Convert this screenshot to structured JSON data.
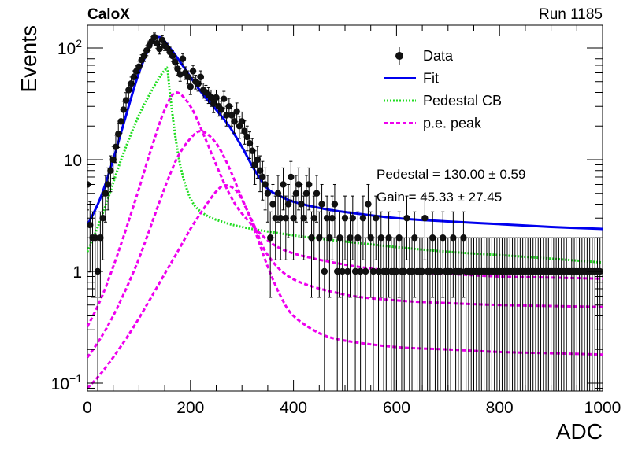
{
  "header": {
    "experiment": "CaloX",
    "run": "Run 1185"
  },
  "chart_data": {
    "type": "scatter",
    "xlabel": "ADC",
    "ylabel": "Events",
    "xlim": [
      0,
      1000
    ],
    "ylim": [
      0.085,
      160
    ],
    "yscale": "log",
    "x_ticks": [
      0,
      200,
      400,
      600,
      800,
      1000
    ],
    "y_ticks": [
      {
        "value": 0.1,
        "base": "10",
        "exp": "−1"
      },
      {
        "value": 1,
        "label": "1"
      },
      {
        "value": 10,
        "label": "10"
      },
      {
        "value": 100,
        "base": "10",
        "exp": "2"
      }
    ],
    "legend": {
      "position": "top-right",
      "entries": [
        {
          "label": "Data",
          "style": "marker"
        },
        {
          "label": "Fit",
          "style": "line",
          "color": "#0000ee"
        },
        {
          "label": "Pedestal CB",
          "style": "dotted",
          "color": "#22dd22"
        },
        {
          "label": "p.e. peak",
          "style": "dashed",
          "color": "#ee00ee"
        }
      ]
    },
    "annotations": [
      {
        "label": "Pedestal",
        "value": "130.00",
        "error": "0.59"
      },
      {
        "label": "Gain",
        "value": "45.33",
        "error": "27.45"
      }
    ],
    "data_points": [
      [
        0,
        6
      ],
      [
        5,
        2.6
      ],
      [
        10,
        2
      ],
      [
        15,
        2
      ],
      [
        20,
        1
      ],
      [
        25,
        2
      ],
      [
        30,
        3
      ],
      [
        35,
        5
      ],
      [
        40,
        6
      ],
      [
        45,
        8
      ],
      [
        50,
        10
      ],
      [
        55,
        13
      ],
      [
        60,
        17
      ],
      [
        65,
        22
      ],
      [
        70,
        28
      ],
      [
        75,
        34
      ],
      [
        80,
        42
      ],
      [
        85,
        48
      ],
      [
        90,
        55
      ],
      [
        95,
        62
      ],
      [
        100,
        68
      ],
      [
        105,
        78
      ],
      [
        110,
        85
      ],
      [
        115,
        95
      ],
      [
        120,
        105
      ],
      [
        125,
        115
      ],
      [
        130,
        125
      ],
      [
        135,
        110
      ],
      [
        140,
        98
      ],
      [
        145,
        118
      ],
      [
        150,
        105
      ],
      [
        155,
        100
      ],
      [
        160,
        92
      ],
      [
        165,
        85
      ],
      [
        170,
        75
      ],
      [
        175,
        65
      ],
      [
        180,
        58
      ],
      [
        185,
        80
      ],
      [
        190,
        60
      ],
      [
        195,
        55
      ],
      [
        200,
        45
      ],
      [
        205,
        62
      ],
      [
        210,
        50
      ],
      [
        215,
        48
      ],
      [
        220,
        55
      ],
      [
        225,
        42
      ],
      [
        230,
        40
      ],
      [
        235,
        38
      ],
      [
        240,
        36
      ],
      [
        245,
        32
      ],
      [
        250,
        36
      ],
      [
        255,
        30
      ],
      [
        260,
        28
      ],
      [
        265,
        35
      ],
      [
        270,
        25
      ],
      [
        275,
        30
      ],
      [
        280,
        25
      ],
      [
        285,
        22
      ],
      [
        290,
        27
      ],
      [
        295,
        20
      ],
      [
        300,
        22
      ],
      [
        305,
        18
      ],
      [
        310,
        16
      ],
      [
        315,
        14
      ],
      [
        320,
        12
      ],
      [
        325,
        9
      ],
      [
        330,
        10
      ],
      [
        335,
        8
      ],
      [
        340,
        7
      ],
      [
        345,
        6
      ],
      [
        350,
        5
      ],
      [
        355,
        2
      ],
      [
        360,
        4
      ],
      [
        365,
        3
      ],
      [
        370,
        5
      ],
      [
        375,
        3
      ],
      [
        380,
        6
      ],
      [
        385,
        3
      ],
      [
        390,
        4
      ],
      [
        395,
        7
      ],
      [
        400,
        3
      ],
      [
        405,
        5
      ],
      [
        410,
        6
      ],
      [
        415,
        4
      ],
      [
        420,
        3
      ],
      [
        425,
        5
      ],
      [
        430,
        6
      ],
      [
        435,
        2
      ],
      [
        440,
        3
      ],
      [
        445,
        5
      ],
      [
        450,
        2
      ],
      [
        455,
        4
      ],
      [
        460,
        1
      ],
      [
        465,
        3
      ],
      [
        470,
        2
      ],
      [
        475,
        3
      ],
      [
        480,
        4
      ],
      [
        485,
        1
      ],
      [
        490,
        2
      ],
      [
        495,
        1
      ],
      [
        500,
        3
      ],
      [
        505,
        1
      ],
      [
        510,
        2
      ],
      [
        515,
        3
      ],
      [
        520,
        1
      ],
      [
        525,
        2
      ],
      [
        530,
        1
      ],
      [
        535,
        3
      ],
      [
        540,
        1
      ],
      [
        545,
        4
      ],
      [
        550,
        2
      ],
      [
        555,
        1
      ],
      [
        560,
        3
      ],
      [
        565,
        1
      ],
      [
        570,
        2
      ],
      [
        575,
        1
      ],
      [
        580,
        1
      ],
      [
        585,
        2
      ],
      [
        590,
        1
      ],
      [
        595,
        1
      ],
      [
        600,
        1
      ],
      [
        605,
        2
      ],
      [
        610,
        1
      ],
      [
        615,
        1
      ],
      [
        620,
        3
      ],
      [
        625,
        1
      ],
      [
        630,
        1
      ],
      [
        635,
        2
      ],
      [
        640,
        1
      ],
      [
        645,
        1
      ],
      [
        650,
        1
      ],
      [
        655,
        3
      ],
      [
        660,
        1
      ],
      [
        665,
        1
      ],
      [
        670,
        2
      ],
      [
        675,
        1
      ],
      [
        680,
        1
      ],
      [
        685,
        1
      ],
      [
        690,
        2
      ],
      [
        695,
        1
      ],
      [
        700,
        1
      ],
      [
        705,
        1
      ],
      [
        710,
        2
      ],
      [
        715,
        1
      ],
      [
        720,
        1
      ],
      [
        725,
        1
      ],
      [
        730,
        2
      ],
      [
        735,
        1
      ],
      [
        740,
        1
      ],
      [
        745,
        1
      ],
      [
        750,
        1
      ],
      [
        755,
        1
      ],
      [
        760,
        1
      ],
      [
        765,
        1
      ],
      [
        770,
        1
      ],
      [
        775,
        1
      ],
      [
        780,
        1
      ],
      [
        785,
        1
      ],
      [
        790,
        1
      ],
      [
        795,
        1
      ],
      [
        800,
        1
      ],
      [
        805,
        1
      ],
      [
        810,
        1
      ],
      [
        815,
        1
      ],
      [
        820,
        1
      ],
      [
        825,
        1
      ],
      [
        830,
        1
      ],
      [
        835,
        1
      ],
      [
        840,
        1
      ],
      [
        845,
        1
      ],
      [
        850,
        1
      ],
      [
        855,
        1
      ],
      [
        860,
        1
      ],
      [
        865,
        1
      ],
      [
        870,
        1
      ],
      [
        875,
        1
      ],
      [
        880,
        1
      ],
      [
        885,
        1
      ],
      [
        890,
        1
      ],
      [
        895,
        1
      ],
      [
        900,
        1
      ],
      [
        905,
        1
      ],
      [
        910,
        1
      ],
      [
        915,
        1
      ],
      [
        920,
        1
      ],
      [
        925,
        1
      ],
      [
        930,
        1
      ],
      [
        935,
        1
      ],
      [
        940,
        1
      ],
      [
        945,
        1
      ],
      [
        950,
        1
      ],
      [
        955,
        1
      ],
      [
        960,
        1
      ],
      [
        965,
        1
      ],
      [
        970,
        1
      ],
      [
        975,
        1
      ],
      [
        980,
        1
      ],
      [
        985,
        1
      ],
      [
        990,
        1
      ],
      [
        995,
        1
      ]
    ],
    "series": [
      {
        "name": "Fit",
        "x": [
          0,
          25,
          50,
          75,
          100,
          125,
          140,
          160,
          180,
          200,
          225,
          250,
          275,
          300,
          325,
          350,
          375,
          400,
          450,
          500,
          600,
          700,
          800,
          900,
          1000
        ],
        "y": [
          2.6,
          4.5,
          10,
          25,
          60,
          110,
          125,
          100,
          75,
          55,
          38,
          28,
          20,
          13,
          8,
          5.5,
          4.7,
          4.2,
          3.7,
          3.4,
          3.0,
          2.8,
          2.65,
          2.5,
          2.4
        ]
      },
      {
        "name": "Pedestal CB",
        "x": [
          0,
          20,
          40,
          60,
          80,
          100,
          120,
          140,
          150,
          155,
          160,
          170,
          180,
          190,
          200,
          210,
          225,
          250,
          300,
          400,
          500,
          600,
          700,
          800,
          900,
          1000
        ],
        "y": [
          1.5,
          2.5,
          4.5,
          8.5,
          15,
          25,
          38,
          55,
          63,
          65,
          40,
          17,
          9,
          6,
          4.5,
          3.8,
          3.3,
          2.9,
          2.5,
          2.1,
          1.85,
          1.65,
          1.5,
          1.4,
          1.3,
          1.2
        ]
      },
      {
        "name": "p.e. peak",
        "x": [
          0,
          25,
          50,
          75,
          100,
          125,
          150,
          172,
          200,
          225,
          250,
          275,
          300,
          350,
          400,
          500,
          600,
          700,
          800,
          900,
          1000
        ],
        "y": [
          0.32,
          0.55,
          1.1,
          2.4,
          5.5,
          13,
          28,
          40,
          30,
          17,
          9,
          5,
          3.3,
          1.9,
          1.45,
          1.15,
          1.0,
          0.95,
          0.9,
          0.88,
          0.86
        ]
      },
      {
        "name": "p.e. peak",
        "x": [
          0,
          25,
          50,
          75,
          100,
          125,
          150,
          175,
          200,
          222,
          250,
          275,
          300,
          325,
          350,
          400,
          500,
          600,
          700,
          800,
          900,
          1000
        ],
        "y": [
          0.17,
          0.25,
          0.4,
          0.7,
          1.3,
          2.7,
          5.6,
          10.5,
          15.5,
          18,
          14,
          8.5,
          4.5,
          2.5,
          1.4,
          0.85,
          0.62,
          0.55,
          0.52,
          0.5,
          0.49,
          0.48
        ]
      },
      {
        "name": "p.e. peak",
        "x": [
          0,
          25,
          50,
          75,
          100,
          125,
          150,
          175,
          200,
          225,
          250,
          268,
          290,
          310,
          330,
          350,
          375,
          400,
          450,
          500,
          600,
          700,
          800,
          900,
          1000
        ],
        "y": [
          0.09,
          0.12,
          0.17,
          0.25,
          0.38,
          0.6,
          0.95,
          1.5,
          2.4,
          3.6,
          5.2,
          5.9,
          5.2,
          3.5,
          2,
          1.1,
          0.6,
          0.4,
          0.28,
          0.24,
          0.21,
          0.2,
          0.19,
          0.185,
          0.18
        ]
      }
    ]
  }
}
